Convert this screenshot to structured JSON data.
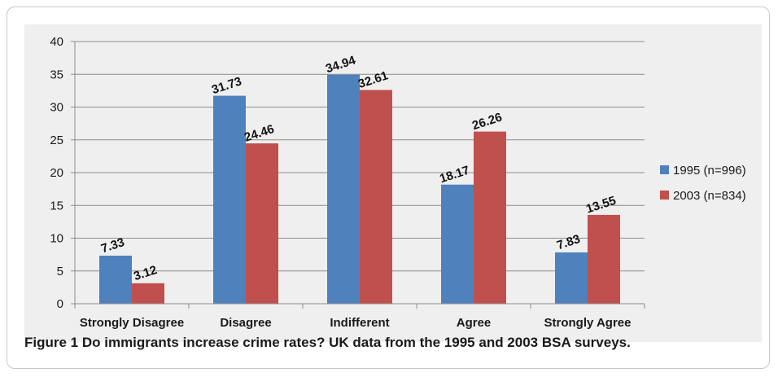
{
  "caption": "Figure 1 Do immigrants increase crime rates? UK data from the 1995 and 2003 BSA surveys.",
  "chart_data": {
    "type": "bar",
    "categories": [
      "Strongly Disagree",
      "Disagree",
      "Indifferent",
      "Agree",
      "Strongly Agree"
    ],
    "series": [
      {
        "name": "1995 (n=996)",
        "values": [
          7.33,
          31.73,
          34.94,
          18.17,
          7.83
        ],
        "color": "#4f81bd",
        "labels": [
          "7.33",
          "31.73",
          "34.94",
          "18.17",
          "7.83"
        ]
      },
      {
        "name": "2003 (n=834)",
        "values": [
          3.12,
          24.46,
          32.61,
          26.26,
          13.55
        ],
        "color": "#c0504d",
        "labels": [
          "3.12",
          "24.46",
          "32.61",
          "26.26",
          "13.55"
        ]
      }
    ],
    "ylim": [
      0,
      40
    ],
    "yticks": [
      "0",
      "5",
      "10",
      "15",
      "20",
      "25",
      "30",
      "35",
      "40"
    ],
    "grid": true,
    "legend": "right",
    "title": "",
    "xlabel": "",
    "ylabel": ""
  }
}
